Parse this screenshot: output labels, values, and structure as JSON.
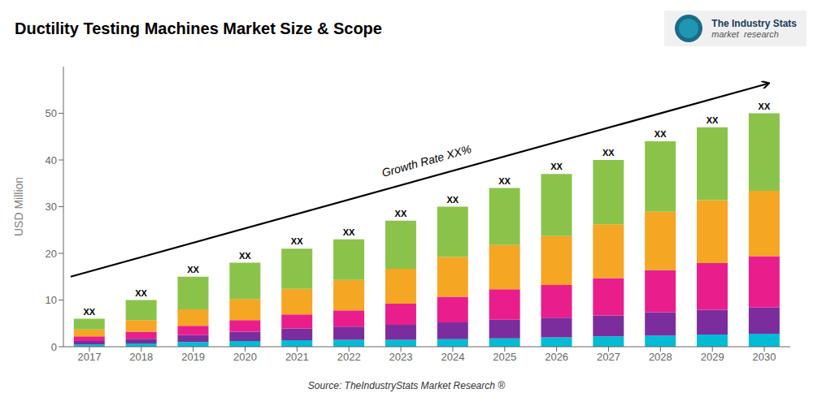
{
  "chart_data": {
    "type": "bar",
    "stacked": true,
    "title": "Ductility Testing Machines Market Size & Scope",
    "ylabel": "USD Million",
    "source": "Source: TheIndustryStats Market Research ®",
    "annotations": [
      "Growth Rate XX%"
    ],
    "logo": [
      "The Industry Stats",
      "market  research"
    ],
    "categories": [
      "2017",
      "2018",
      "2019",
      "2020",
      "2021",
      "2022",
      "2023",
      "2024",
      "2025",
      "2026",
      "2027",
      "2028",
      "2029",
      "2030"
    ],
    "series": [
      {
        "color": "#00bcd4",
        "values": [
          0.5,
          0.7,
          1.0,
          1.2,
          1.4,
          1.5,
          1.5,
          1.6,
          1.8,
          2.0,
          2.2,
          2.4,
          2.6,
          2.8
        ]
      },
      {
        "color": "#7b2d9e",
        "values": [
          0.7,
          1.0,
          1.5,
          2.0,
          2.5,
          2.8,
          3.2,
          3.6,
          4.0,
          4.2,
          4.5,
          5.0,
          5.3,
          5.6
        ]
      },
      {
        "color": "#e91e8c",
        "values": [
          1.0,
          1.5,
          2.0,
          2.5,
          3.0,
          3.5,
          4.5,
          5.5,
          6.5,
          7.0,
          8.0,
          9.0,
          10.0,
          11.0
        ]
      },
      {
        "color": "#f5a623",
        "values": [
          1.5,
          2.5,
          3.5,
          4.5,
          5.5,
          6.5,
          7.5,
          8.5,
          9.5,
          10.5,
          11.5,
          12.5,
          13.5,
          14.0
        ]
      },
      {
        "color": "#8bc34a",
        "values": [
          2.3,
          4.3,
          7.0,
          7.8,
          8.6,
          8.7,
          10.3,
          10.8,
          12.2,
          13.3,
          13.8,
          15.1,
          15.6,
          16.6
        ],
        "value_labels": [
          "XX",
          "XX",
          "XX",
          "XX",
          "XX",
          "XX",
          "XX",
          "XX",
          "XX",
          "XX",
          "XX",
          "XX",
          "XX",
          "XX"
        ]
      }
    ],
    "ylim": [
      0,
      60
    ],
    "yticks": [
      0,
      10,
      20,
      30,
      40,
      50
    ],
    "grid": false
  }
}
